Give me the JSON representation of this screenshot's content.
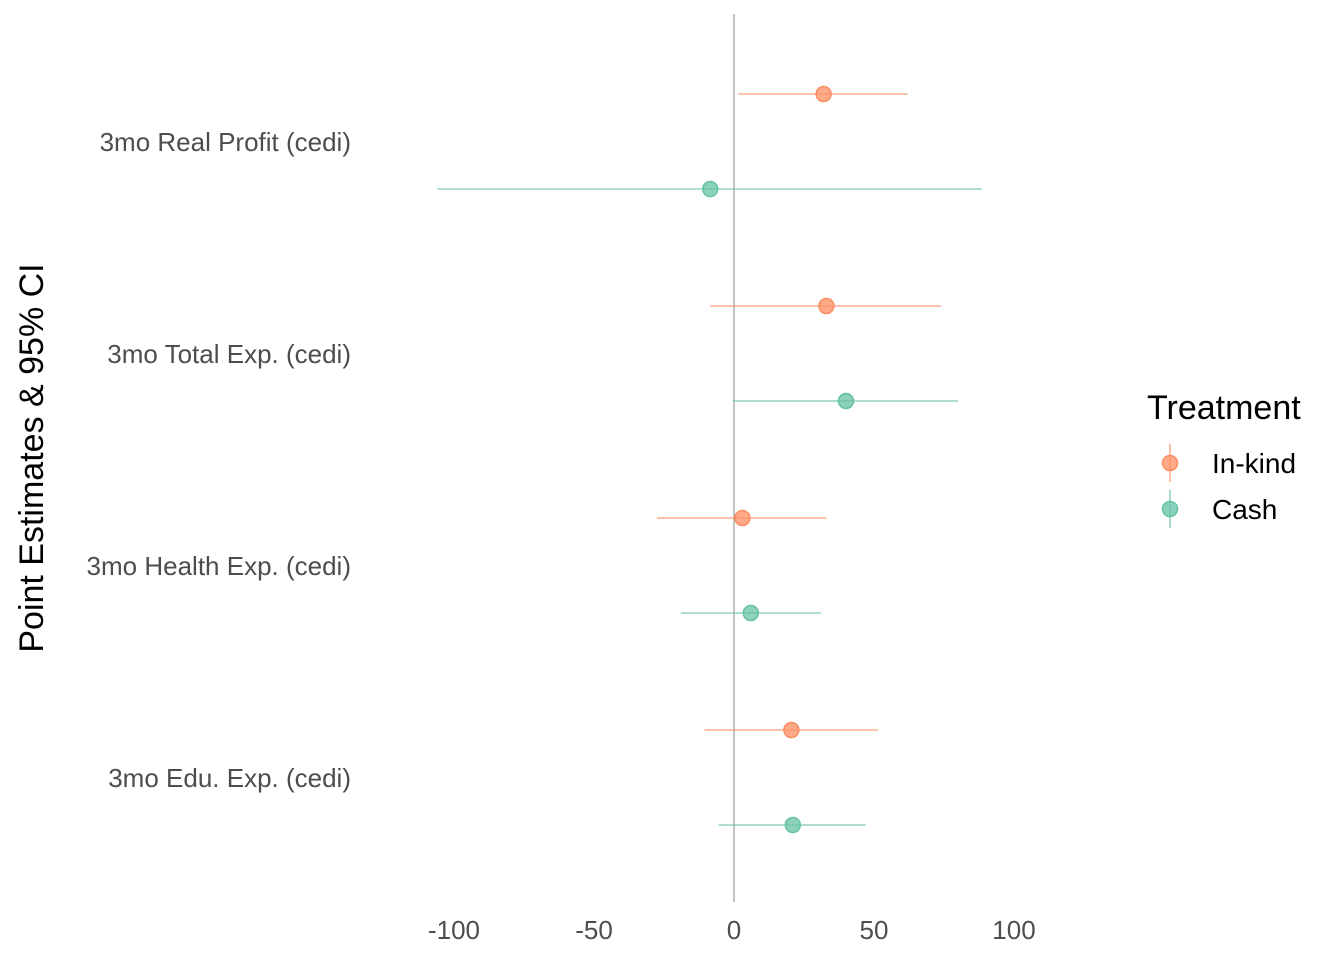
{
  "chart_data": {
    "type": "scatter",
    "subtype": "coefficient-plot",
    "title": "",
    "xlabel": "",
    "ylabel": "Point Estimates & 95% CI",
    "xlim": [
      -106,
      110
    ],
    "xticks": [
      -100,
      -50,
      0,
      50,
      100
    ],
    "xtick_labels": [
      "-100",
      "-50",
      "0",
      "50",
      "100"
    ],
    "reference_line_x": 0,
    "grid": false,
    "categories": [
      "3mo Real Profit (cedi)",
      "3mo Total Exp. (cedi)",
      "3mo Health Exp. (cedi)",
      "3mo Edu. Exp. (cedi)"
    ],
    "series": [
      {
        "name": "In-kind",
        "color": "#fc8d62",
        "estimates": [
          32,
          33,
          3,
          20.5
        ],
        "ci_low": [
          1.5,
          -8.5,
          -27.5,
          -10.5
        ],
        "ci_high": [
          62,
          74,
          33,
          51.5
        ]
      },
      {
        "name": "Cash",
        "color": "#66c2a5",
        "estimates": [
          -8.5,
          40,
          6,
          21
        ],
        "ci_low": [
          -106,
          -0.5,
          -19,
          -5.5
        ],
        "ci_high": [
          88.5,
          80,
          31,
          47
        ]
      }
    ],
    "legend": {
      "title": "Treatment",
      "position": "right"
    }
  }
}
